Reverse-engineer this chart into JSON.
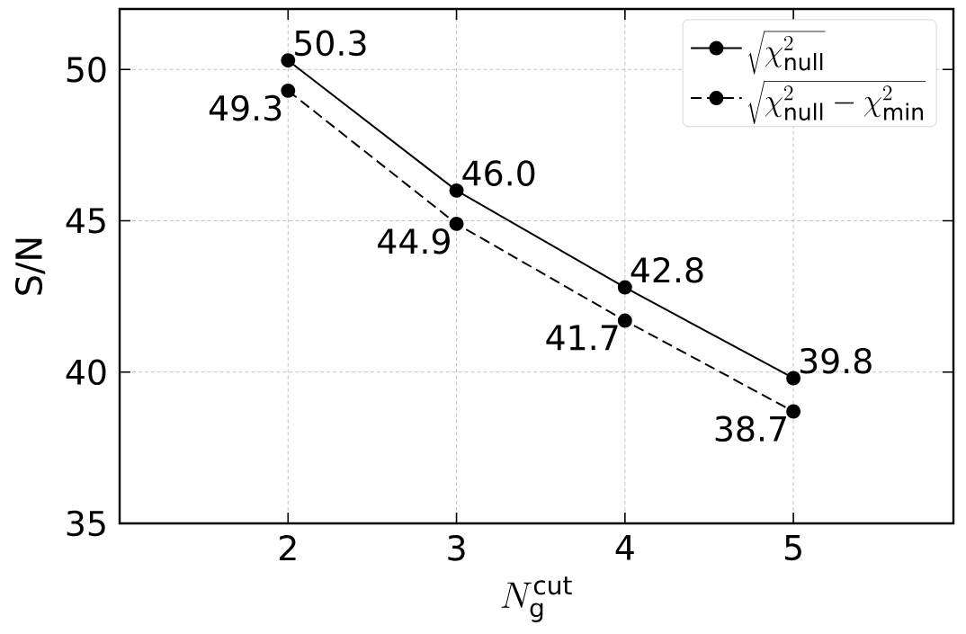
{
  "chart_data": {
    "type": "line",
    "xlabel": "N_\\mathrm{g}^\\mathrm{cut}",
    "ylabel": "S/N",
    "x": [
      2,
      3,
      4,
      5
    ],
    "series": [
      {
        "name": "\\sqrt{\\chi^2_\\mathrm{null}}",
        "color": "#000000",
        "values": [
          50.3,
          46.0,
          42.8,
          39.8
        ],
        "value_labels": [
          "50.3",
          "46.0",
          "42.8",
          "39.8"
        ],
        "line_style": "solid"
      },
      {
        "name": "\\sqrt{\\chi^2_\\mathrm{null}-\\chi^2_\\mathrm{min}}",
        "color": "#000000",
        "values": [
          49.3,
          44.9,
          41.7,
          38.7
        ],
        "value_labels": [
          "49.3",
          "44.9",
          "41.7",
          "38.7"
        ],
        "line_style": "dashed"
      }
    ],
    "xlim": [
      1,
      5.95
    ],
    "ylim": [
      35,
      52
    ],
    "xticks": [
      2,
      3,
      4,
      5
    ],
    "yticks": [
      35,
      40,
      45,
      50
    ],
    "marker": "circle",
    "grid": true,
    "legend": "top right"
  }
}
